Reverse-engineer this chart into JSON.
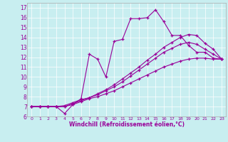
{
  "xlabel": "Windchill (Refroidissement éolien,°C)",
  "bg_color": "#c8eef0",
  "line_color": "#990099",
  "xlim": [
    -0.5,
    23.5
  ],
  "ylim": [
    6,
    17.5
  ],
  "xticks": [
    0,
    1,
    2,
    3,
    4,
    5,
    6,
    7,
    8,
    9,
    10,
    11,
    12,
    13,
    14,
    15,
    16,
    17,
    18,
    19,
    20,
    21,
    22,
    23
  ],
  "yticks": [
    6,
    7,
    8,
    9,
    10,
    11,
    12,
    13,
    14,
    15,
    16,
    17
  ],
  "series": [
    {
      "x": [
        0,
        1,
        2,
        3,
        4,
        5,
        6,
        7,
        8,
        9,
        10,
        11,
        12,
        13,
        14,
        15,
        16,
        17,
        18,
        19,
        20,
        21,
        22,
        23
      ],
      "y": [
        7,
        7,
        7,
        7,
        6.3,
        7.2,
        7.8,
        12.3,
        11.8,
        10.0,
        13.6,
        13.8,
        15.9,
        15.9,
        16.0,
        16.8,
        15.6,
        14.2,
        14.2,
        13.2,
        12.5,
        12.5,
        11.9,
        11.8
      ]
    },
    {
      "x": [
        0,
        1,
        2,
        3,
        4,
        5,
        6,
        7,
        8,
        9,
        10,
        11,
        12,
        13,
        14,
        15,
        16,
        17,
        18,
        19,
        20,
        21,
        22,
        23
      ],
      "y": [
        7,
        7,
        7,
        7,
        7.1,
        7.4,
        7.7,
        7.9,
        8.3,
        8.7,
        9.2,
        9.8,
        10.4,
        11.0,
        11.7,
        12.3,
        13.0,
        13.5,
        14.0,
        14.3,
        14.2,
        13.4,
        12.8,
        11.8
      ]
    },
    {
      "x": [
        0,
        1,
        2,
        3,
        4,
        5,
        6,
        7,
        8,
        9,
        10,
        11,
        12,
        13,
        14,
        15,
        16,
        17,
        18,
        19,
        20,
        21,
        22,
        23
      ],
      "y": [
        7,
        7,
        7,
        7,
        7.0,
        7.3,
        7.6,
        7.9,
        8.2,
        8.6,
        9.0,
        9.5,
        10.1,
        10.7,
        11.3,
        11.9,
        12.5,
        12.9,
        13.3,
        13.5,
        13.3,
        12.8,
        12.3,
        11.8
      ]
    },
    {
      "x": [
        0,
        1,
        2,
        3,
        4,
        5,
        6,
        7,
        8,
        9,
        10,
        11,
        12,
        13,
        14,
        15,
        16,
        17,
        18,
        19,
        20,
        21,
        22,
        23
      ],
      "y": [
        7,
        7,
        7,
        7,
        7.0,
        7.2,
        7.5,
        7.8,
        8.0,
        8.3,
        8.6,
        9.0,
        9.4,
        9.8,
        10.2,
        10.6,
        11.0,
        11.3,
        11.6,
        11.8,
        11.9,
        11.9,
        11.8,
        11.8
      ]
    }
  ]
}
